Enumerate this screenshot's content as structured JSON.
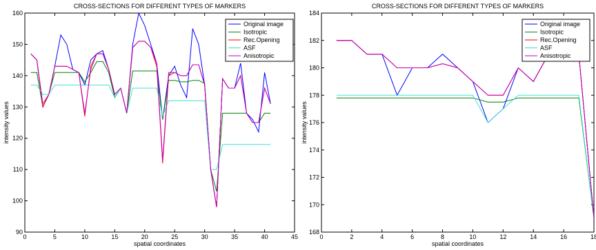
{
  "chart_data": [
    {
      "type": "line",
      "title": "CROSS-SECTIONS FOR DIFFERENT TYPES OF MARKERS",
      "xlabel": "spatial coordinates",
      "ylabel": "intensity values",
      "xlim": [
        0,
        45
      ],
      "ylim": [
        90,
        160
      ],
      "xticks": [
        0,
        5,
        10,
        15,
        20,
        25,
        30,
        35,
        40,
        45
      ],
      "yticks": [
        90,
        100,
        110,
        120,
        130,
        140,
        150,
        160
      ],
      "grid": false,
      "legend": "top-right",
      "series": [
        {
          "name": "Original image",
          "color": "#0000ff",
          "x": [
            1,
            2,
            3,
            4,
            5,
            6,
            7,
            8,
            9,
            10,
            11,
            12,
            13,
            14,
            15,
            16,
            17,
            18,
            19,
            20,
            21,
            22,
            23,
            24,
            25,
            26,
            27,
            28,
            29,
            30,
            31,
            32,
            33,
            34,
            35,
            36,
            37,
            38,
            39,
            40,
            41
          ],
          "y": [
            147,
            145,
            130,
            134,
            143,
            153,
            150,
            142,
            141,
            137,
            145,
            147,
            148,
            142,
            133,
            136,
            128,
            150,
            160,
            156,
            150,
            144,
            126,
            140,
            143,
            137,
            133,
            155,
            150,
            137,
            110,
            98,
            139,
            136,
            136,
            144,
            128,
            126,
            122,
            141,
            131
          ]
        },
        {
          "name": "Isotropic",
          "color": "#008000",
          "x": [
            1,
            2,
            3,
            4,
            5,
            6,
            7,
            8,
            9,
            10,
            11,
            12,
            13,
            14,
            15,
            16,
            17,
            18,
            19,
            20,
            21,
            22,
            23,
            24,
            25,
            26,
            27,
            28,
            29,
            30,
            31,
            32,
            33,
            34,
            35,
            36,
            37,
            38,
            39,
            40,
            41
          ],
          "y": [
            141,
            141,
            130,
            134,
            141,
            141,
            141,
            141,
            141,
            138,
            141,
            144.5,
            144.5,
            141,
            133,
            136,
            128,
            141.5,
            141.5,
            141.5,
            141.5,
            141.5,
            126,
            138.5,
            138.5,
            138,
            138,
            138.5,
            138.5,
            137.5,
            110,
            103,
            128,
            128,
            128,
            128,
            128,
            125,
            125,
            128,
            128
          ]
        },
        {
          "name": "Rec.Opening",
          "color": "#ff0000",
          "x": [
            1,
            2,
            3,
            4,
            5,
            6,
            7,
            8,
            9,
            10,
            11,
            12,
            13,
            14,
            15,
            16,
            17,
            18,
            19,
            20,
            21,
            22,
            23,
            24,
            25,
            26,
            27,
            28,
            29,
            30,
            31,
            32,
            33,
            34,
            35,
            36,
            37,
            38,
            39,
            40,
            41
          ],
          "y": [
            147,
            145,
            130,
            134,
            143,
            143,
            143,
            142,
            141,
            127,
            143,
            147,
            147,
            142,
            134,
            136,
            128,
            149,
            151,
            151,
            149,
            143,
            112,
            140,
            141,
            140,
            140,
            143.5,
            143.5,
            137,
            110,
            98,
            139,
            136,
            136,
            140,
            128,
            125,
            125,
            136,
            131
          ]
        },
        {
          "name": "ASF",
          "color": "#40e0d0",
          "x": [
            1,
            2,
            3,
            4,
            5,
            6,
            7,
            8,
            9,
            10,
            11,
            12,
            13,
            14,
            15,
            16,
            17,
            18,
            19,
            20,
            21,
            22,
            23,
            24,
            25,
            26,
            27,
            28,
            29,
            30,
            31,
            32,
            33,
            34,
            35,
            36,
            37,
            38,
            39,
            40,
            41
          ],
          "y": [
            137,
            137,
            134,
            134,
            137,
            137,
            137,
            137,
            137,
            137,
            137,
            137,
            137,
            137,
            133,
            136,
            128,
            136,
            136,
            136,
            136,
            136,
            127,
            132,
            132,
            132,
            132,
            132,
            132,
            132,
            110,
            110,
            118,
            118,
            118,
            118,
            118,
            118,
            118,
            118,
            118
          ]
        },
        {
          "name": "Anisotropic",
          "color": "#c000c0",
          "x": [
            1,
            2,
            3,
            4,
            5,
            6,
            7,
            8,
            9,
            10,
            11,
            12,
            13,
            14,
            15,
            16,
            17,
            18,
            19,
            20,
            21,
            22,
            23,
            24,
            25,
            26,
            27,
            28,
            29,
            30,
            31,
            32,
            33,
            34,
            35,
            36,
            37,
            38,
            39,
            40,
            41
          ],
          "y": [
            147,
            145,
            131,
            134,
            143,
            143,
            143,
            142,
            141,
            128,
            142,
            147,
            147,
            142,
            134,
            136,
            128,
            149,
            151,
            151,
            149,
            144,
            113,
            141,
            141,
            140,
            140,
            143.5,
            143.5,
            137,
            110,
            98,
            139,
            136,
            136,
            140,
            128,
            125,
            125,
            136,
            131
          ]
        }
      ]
    },
    {
      "type": "line",
      "title": "CROSS-SECTIONS FOR DIFFERENT TYPES OF MARKERS",
      "xlabel": "spatial coordinates",
      "ylabel": "intensity values",
      "xlim": [
        0,
        18
      ],
      "ylim": [
        168,
        184
      ],
      "xticks": [
        0,
        2,
        4,
        6,
        8,
        10,
        12,
        14,
        16,
        18
      ],
      "yticks": [
        168,
        170,
        172,
        174,
        176,
        178,
        180,
        182,
        184
      ],
      "grid": false,
      "legend": "top-right",
      "series": [
        {
          "name": "Original image",
          "color": "#0000ff",
          "x": [
            1,
            2,
            3,
            4,
            5,
            6,
            7,
            8,
            9,
            10,
            11,
            12,
            13,
            14,
            15,
            16,
            17,
            18
          ],
          "y": [
            182,
            182,
            181,
            181,
            178,
            180,
            180,
            181,
            180,
            179,
            176,
            177,
            180,
            179,
            181,
            181,
            181,
            169
          ]
        },
        {
          "name": "Isotropic",
          "color": "#008000",
          "x": [
            1,
            2,
            3,
            4,
            5,
            6,
            7,
            8,
            9,
            10,
            11,
            12,
            13,
            14,
            15,
            16,
            17,
            18
          ],
          "y": [
            177.8,
            177.8,
            177.8,
            177.8,
            177.8,
            177.8,
            177.8,
            177.8,
            177.8,
            177.8,
            177.5,
            177.5,
            177.8,
            177.8,
            177.8,
            177.8,
            177.8,
            169
          ]
        },
        {
          "name": "Rec.Opening",
          "color": "#ff0000",
          "x": [
            1,
            2,
            3,
            4,
            5,
            6,
            7,
            8,
            9,
            10,
            11,
            12,
            13,
            14,
            15,
            16,
            17,
            18
          ],
          "y": [
            182,
            182,
            181,
            181,
            180,
            180,
            180,
            180.3,
            180,
            179,
            178,
            178,
            180,
            179,
            181,
            181,
            181,
            169
          ]
        },
        {
          "name": "ASF",
          "color": "#40e0d0",
          "x": [
            1,
            2,
            3,
            4,
            5,
            6,
            7,
            8,
            9,
            10,
            11,
            12,
            13,
            14,
            15,
            16,
            17,
            18
          ],
          "y": [
            178,
            178,
            178,
            178,
            178,
            178,
            178,
            178,
            178,
            178,
            176,
            177,
            178,
            178,
            178,
            178,
            178,
            169
          ]
        },
        {
          "name": "Anisotropic",
          "color": "#c000c0",
          "x": [
            1,
            2,
            3,
            4,
            5,
            6,
            7,
            8,
            9,
            10,
            11,
            12,
            13,
            14,
            15,
            16,
            17,
            18
          ],
          "y": [
            182,
            182,
            181,
            181,
            180,
            180,
            180,
            180.3,
            180,
            179,
            178,
            178,
            180,
            179,
            181,
            181,
            181,
            169
          ]
        }
      ]
    }
  ]
}
